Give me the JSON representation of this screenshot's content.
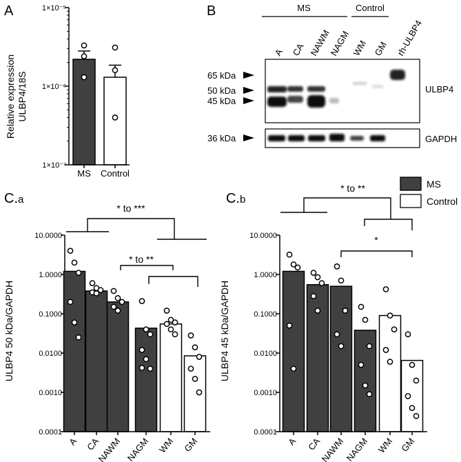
{
  "colors": {
    "ms": "#404040",
    "control": "#ffffff",
    "stroke": "#000000"
  },
  "panel_a": {
    "letter": "A",
    "ylabel_line1": "Relative expression",
    "ylabel_line2": "ULBP4/18S",
    "yticks": [
      "1×10⁻⁵",
      "1×10⁻⁶",
      "1×10⁻⁷"
    ]
  },
  "panel_b": {
    "letter": "B",
    "group_ms": "MS",
    "group_control": "Control",
    "lanes": [
      "A",
      "CA",
      "NAWM",
      "NAGM",
      "WM",
      "GM",
      "rh-ULBP4"
    ],
    "markers": [
      "65 kDa",
      "50 kDa",
      "45 kDa",
      "36 kDa"
    ],
    "target_label": "ULBP4",
    "loading_label": "GAPDH"
  },
  "panel_ca": {
    "letter": "C.",
    "sub": "a",
    "ylabel": "ULBP4 50 kDa/GAPDH",
    "yticks": [
      "10.0000",
      "1.0000",
      "0.1000",
      "0.0100",
      "0.0010",
      "0.0001"
    ],
    "sig1": "* to ***",
    "sig2": "* to **"
  },
  "panel_cb": {
    "letter": "C.",
    "sub": "b",
    "ylabel": "ULBP4 45 kDa/GAPDH",
    "yticks": [
      "10.0000",
      "1.0000",
      "0.1000",
      "0.0100",
      "0.0010",
      "0.0001"
    ],
    "sig1": "* to **",
    "sig2": "*"
  },
  "legend": {
    "ms": "MS",
    "control": "Control"
  },
  "chart_data": [
    {
      "type": "bar",
      "panel": "A",
      "categories": [
        "MS",
        "Control"
      ],
      "values": [
        2.2e-06,
        1.3e-06
      ],
      "errors": [
        6e-07,
        5.5e-07
      ],
      "points": [
        [
          3.3e-06,
          2.4e-06,
          1.3e-06
        ],
        [
          3.1e-06,
          1.6e-06,
          4e-07
        ]
      ],
      "ylabel": "Relative expression ULBP4/18S",
      "yscale": "log",
      "ylim": [
        1e-07,
        1e-05
      ]
    },
    {
      "type": "bar",
      "panel": "C.a",
      "categories": [
        "A",
        "CA",
        "NAWM",
        "NAGM",
        "WM",
        "GM"
      ],
      "values": [
        1.2,
        0.38,
        0.2,
        0.043,
        0.055,
        0.0085
      ],
      "groups": [
        "MS",
        "MS",
        "MS",
        "MS",
        "Control",
        "Control"
      ],
      "points": [
        [
          4.0,
          2.0,
          1.1,
          0.2,
          0.06,
          0.025
        ],
        [
          0.6,
          0.45,
          0.4,
          0.35,
          0.33
        ],
        [
          0.38,
          0.25,
          0.2,
          0.15,
          0.12
        ],
        [
          0.21,
          0.04,
          0.03,
          0.012,
          0.007,
          0.004,
          0.0042
        ],
        [
          0.12,
          0.07,
          0.06,
          0.055,
          0.04,
          0.03
        ],
        [
          0.028,
          0.014,
          0.008,
          0.004,
          0.0022,
          0.001
        ]
      ],
      "ylabel": "ULBP4 50 kDa/GAPDH",
      "yscale": "log",
      "ylim": [
        0.0001,
        10
      ]
    },
    {
      "type": "bar",
      "panel": "C.b",
      "categories": [
        "A",
        "CA",
        "NAWM",
        "NAGM",
        "WM",
        "GM"
      ],
      "values": [
        1.2,
        0.55,
        0.5,
        0.038,
        0.09,
        0.0065
      ],
      "groups": [
        "MS",
        "MS",
        "MS",
        "MS",
        "Control",
        "Control"
      ],
      "points": [
        [
          3.2,
          1.8,
          1.5,
          0.05,
          0.004
        ],
        [
          1.1,
          0.85,
          0.6,
          0.28,
          0.12
        ],
        [
          1.6,
          0.7,
          0.12,
          0.03,
          0.015
        ],
        [
          0.15,
          0.07,
          0.015,
          0.005,
          0.0015,
          0.0009
        ],
        [
          0.42,
          0.09,
          0.04,
          0.012,
          0.006
        ],
        [
          0.03,
          0.005,
          0.002,
          0.0008,
          0.0004,
          0.00025
        ]
      ],
      "ylabel": "ULBP4 45 kDa/GAPDH",
      "yscale": "log",
      "ylim": [
        0.0001,
        10
      ]
    }
  ]
}
